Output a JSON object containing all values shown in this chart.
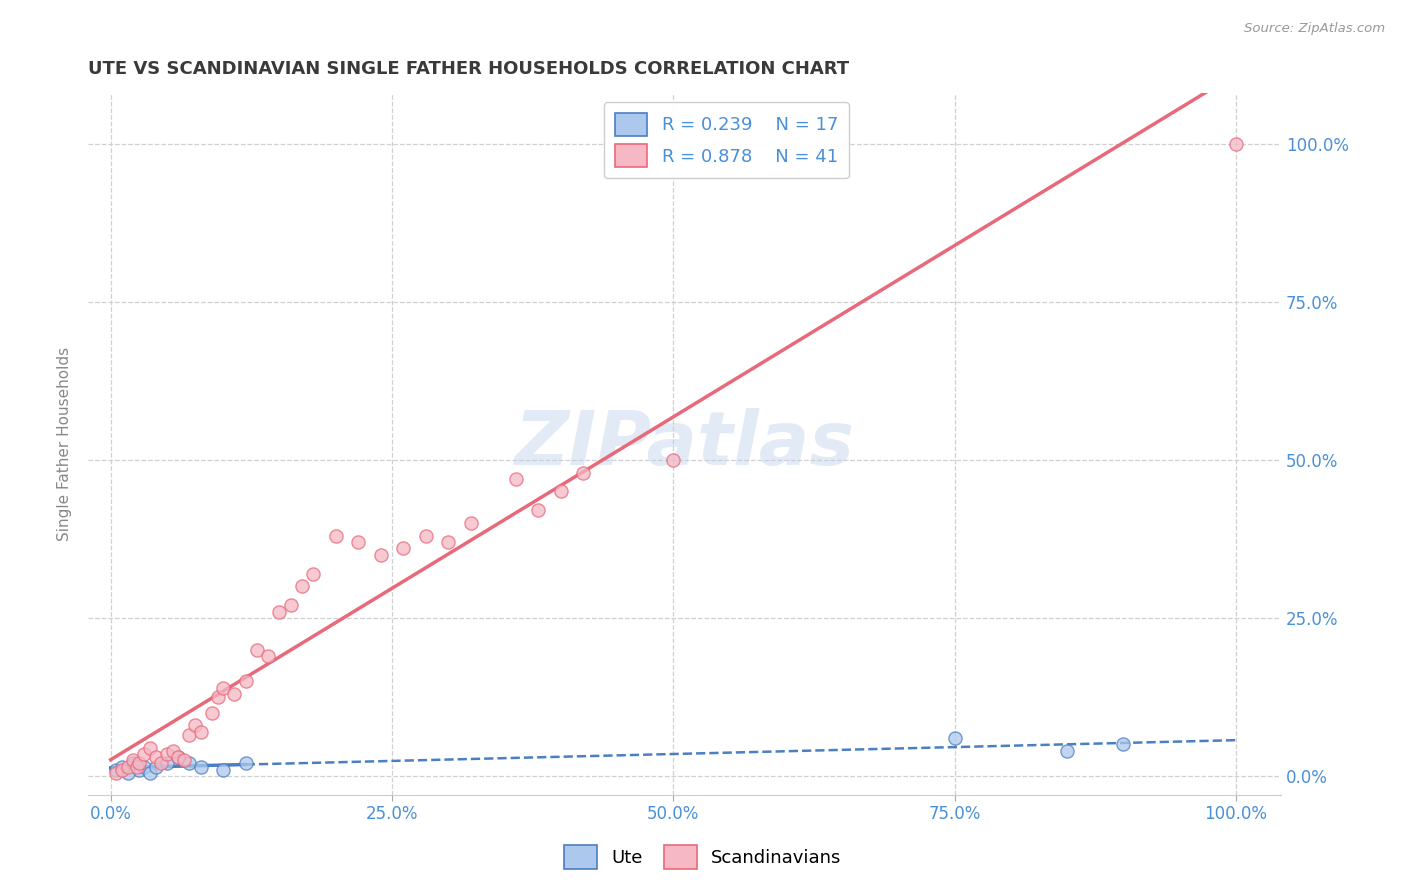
{
  "title": "UTE VS SCANDINAVIAN SINGLE FATHER HOUSEHOLDS CORRELATION CHART",
  "source_text": "Source: ZipAtlas.com",
  "ylabel": "Single Father Households",
  "watermark": "ZIPatlas",
  "ute_R": "0.239",
  "ute_N": "17",
  "scand_R": "0.878",
  "scand_N": "41",
  "ute_color": "#adc8ed",
  "scand_color": "#f5b8c4",
  "ute_line_color": "#4a7fc1",
  "scand_line_color": "#e8697a",
  "axis_label_color": "#4a90d9",
  "title_color": "#3a3a3a",
  "grid_color": "#d0d0d0",
  "background_color": "#ffffff",
  "ute_points_x": [
    0.5,
    1.0,
    1.5,
    2.0,
    2.5,
    3.0,
    3.5,
    4.0,
    5.0,
    6.0,
    7.0,
    8.0,
    10.0,
    12.0,
    75.0,
    85.0,
    90.0
  ],
  "ute_points_y": [
    1.0,
    1.5,
    0.5,
    2.0,
    1.0,
    1.5,
    0.5,
    1.5,
    2.0,
    3.0,
    2.0,
    1.5,
    1.0,
    2.0,
    6.0,
    4.0,
    5.0
  ],
  "scand_points_x": [
    0.5,
    1.0,
    1.5,
    2.0,
    2.3,
    2.5,
    3.0,
    3.5,
    4.0,
    4.5,
    5.0,
    5.5,
    6.0,
    6.5,
    7.0,
    7.5,
    8.0,
    9.0,
    9.5,
    10.0,
    11.0,
    12.0,
    13.0,
    14.0,
    15.0,
    16.0,
    17.0,
    18.0,
    20.0,
    22.0,
    24.0,
    26.0,
    28.0,
    30.0,
    32.0,
    36.0,
    38.0,
    40.0,
    42.0,
    50.0,
    100.0
  ],
  "scand_points_y": [
    0.5,
    1.0,
    1.5,
    2.5,
    1.5,
    2.0,
    3.5,
    4.5,
    3.0,
    2.0,
    3.5,
    4.0,
    3.0,
    2.5,
    6.5,
    8.0,
    7.0,
    10.0,
    12.5,
    14.0,
    13.0,
    15.0,
    20.0,
    19.0,
    26.0,
    27.0,
    30.0,
    32.0,
    38.0,
    37.0,
    35.0,
    36.0,
    38.0,
    37.0,
    40.0,
    47.0,
    42.0,
    45.0,
    48.0,
    50.0,
    100.0
  ],
  "xlim": [
    -2,
    104
  ],
  "ylim": [
    -3,
    108
  ],
  "xticks": [
    0,
    25,
    50,
    75,
    100
  ],
  "yticks": [
    0,
    25,
    50,
    75,
    100
  ],
  "xtick_labels": [
    "0.0%",
    "25.0%",
    "50.0%",
    "75.0%",
    "100.0%"
  ],
  "ytick_labels": [
    "0.0%",
    "25.0%",
    "50.0%",
    "75.0%",
    "100.0%"
  ]
}
